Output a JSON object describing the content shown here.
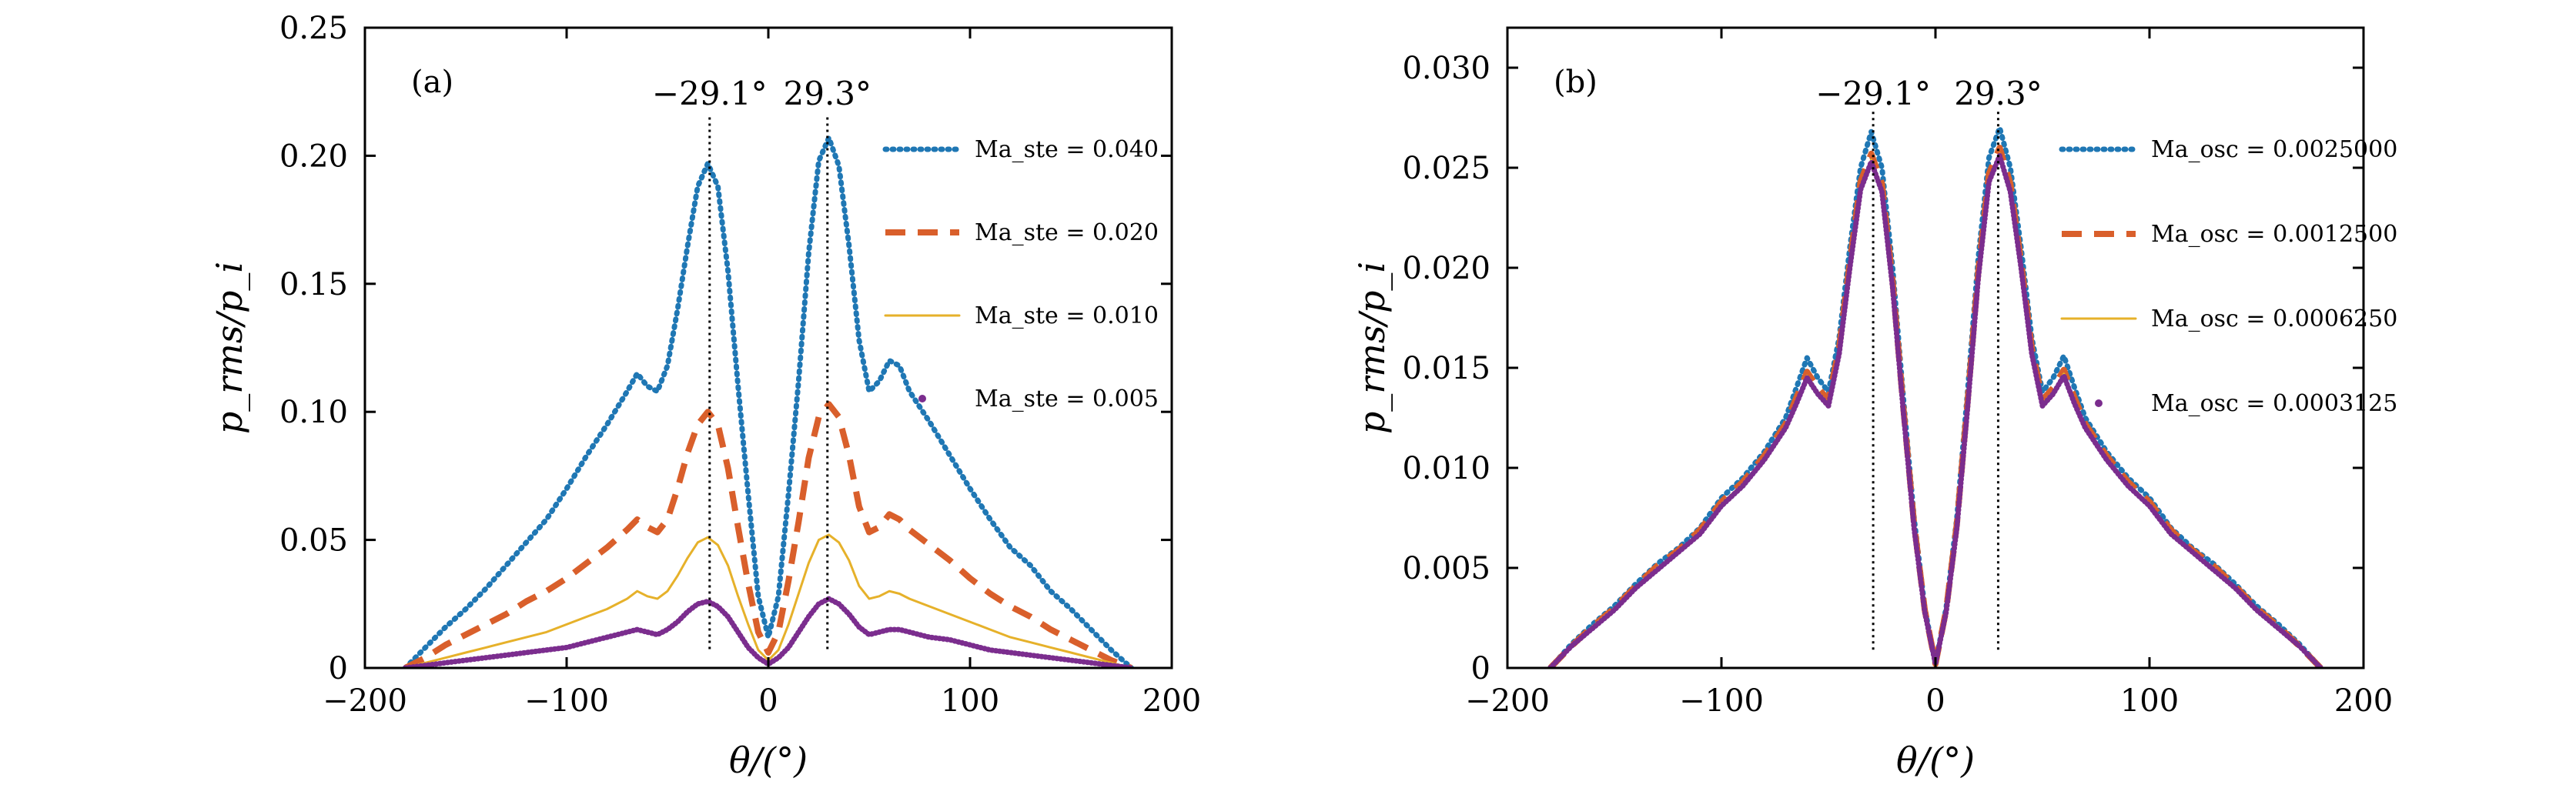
{
  "colors": {
    "series1": "#1f77b4",
    "series2": "#d95f2b",
    "series3": "#e6b12a",
    "series4": "#7b2d8e",
    "axis": "#000000"
  },
  "chart_data": [
    {
      "id": "a",
      "panel_label": "(a)",
      "type": "line",
      "xlabel": "θ/(°)",
      "ylabel": "p_rms/p_i",
      "xlim": [
        -200,
        200
      ],
      "ylim": [
        0,
        0.25
      ],
      "xticks": [
        -200,
        -100,
        0,
        100,
        200
      ],
      "xtick_labels": [
        "−200",
        "−100",
        "0",
        "100",
        "200"
      ],
      "yticks": [
        0,
        0.05,
        0.1,
        0.15,
        0.2,
        0.25
      ],
      "ytick_labels": [
        "0",
        "0.05",
        "0.10",
        "0.15",
        "0.20",
        "0.25"
      ],
      "vlines": [
        {
          "x": -29.1,
          "y_top": 0.215,
          "label": "−29.1°"
        },
        {
          "x": 29.3,
          "y_top": 0.215,
          "label": "29.3°"
        }
      ],
      "legend_position": "top-right",
      "series": [
        {
          "name": "Ma_ste = 0.040",
          "legend_label": {
            "var": "Ma",
            "sub": "ste",
            "rest": " = 0.040"
          },
          "style": "dotted",
          "color_key": "series1",
          "x": [
            -180,
            -170,
            -160,
            -150,
            -140,
            -130,
            -120,
            -110,
            -100,
            -90,
            -80,
            -70,
            -65,
            -60,
            -55,
            -50,
            -45,
            -40,
            -35,
            -30,
            -25,
            -20,
            -15,
            -10,
            -5,
            0,
            5,
            10,
            15,
            20,
            25,
            30,
            35,
            40,
            45,
            50,
            55,
            60,
            65,
            70,
            80,
            90,
            100,
            110,
            120,
            130,
            140,
            150,
            160,
            170,
            180
          ],
          "values": [
            0,
            0.008,
            0.016,
            0.023,
            0.031,
            0.04,
            0.049,
            0.058,
            0.07,
            0.083,
            0.095,
            0.108,
            0.115,
            0.11,
            0.108,
            0.118,
            0.14,
            0.165,
            0.188,
            0.197,
            0.188,
            0.155,
            0.11,
            0.068,
            0.028,
            0.012,
            0.028,
            0.068,
            0.112,
            0.162,
            0.198,
            0.207,
            0.196,
            0.165,
            0.128,
            0.108,
            0.112,
            0.12,
            0.118,
            0.108,
            0.096,
            0.083,
            0.07,
            0.058,
            0.047,
            0.04,
            0.03,
            0.023,
            0.015,
            0.007,
            0
          ]
        },
        {
          "name": "Ma_ste = 0.020",
          "legend_label": {
            "var": "Ma",
            "sub": "ste",
            "rest": " = 0.020"
          },
          "style": "dashed",
          "color_key": "series2",
          "x": [
            -180,
            -170,
            -160,
            -150,
            -140,
            -130,
            -120,
            -110,
            -100,
            -90,
            -80,
            -70,
            -65,
            -60,
            -55,
            -50,
            -45,
            -40,
            -35,
            -30,
            -25,
            -20,
            -15,
            -10,
            -5,
            0,
            5,
            10,
            15,
            20,
            25,
            30,
            35,
            40,
            45,
            50,
            55,
            60,
            65,
            70,
            80,
            90,
            100,
            110,
            120,
            130,
            140,
            150,
            160,
            170,
            180
          ],
          "values": [
            0,
            0.004,
            0.009,
            0.013,
            0.017,
            0.021,
            0.026,
            0.03,
            0.035,
            0.041,
            0.047,
            0.054,
            0.058,
            0.055,
            0.053,
            0.058,
            0.07,
            0.084,
            0.095,
            0.1,
            0.095,
            0.078,
            0.055,
            0.033,
            0.014,
            0.006,
            0.014,
            0.034,
            0.057,
            0.082,
            0.098,
            0.103,
            0.098,
            0.083,
            0.063,
            0.053,
            0.055,
            0.06,
            0.058,
            0.054,
            0.048,
            0.042,
            0.035,
            0.029,
            0.024,
            0.02,
            0.015,
            0.011,
            0.007,
            0.003,
            0
          ]
        },
        {
          "name": "Ma_ste = 0.010",
          "legend_label": {
            "var": "Ma",
            "sub": "ste",
            "rest": " = 0.010"
          },
          "style": "solid-thin",
          "color_key": "series3",
          "x": [
            -180,
            -170,
            -160,
            -150,
            -140,
            -130,
            -120,
            -110,
            -100,
            -90,
            -80,
            -70,
            -65,
            -60,
            -55,
            -50,
            -45,
            -40,
            -35,
            -30,
            -25,
            -20,
            -15,
            -10,
            -5,
            0,
            5,
            10,
            15,
            20,
            25,
            30,
            35,
            40,
            45,
            50,
            55,
            60,
            65,
            70,
            80,
            90,
            100,
            110,
            120,
            130,
            140,
            150,
            160,
            170,
            180
          ],
          "values": [
            0,
            0.002,
            0.004,
            0.006,
            0.008,
            0.01,
            0.012,
            0.014,
            0.017,
            0.02,
            0.023,
            0.027,
            0.03,
            0.028,
            0.027,
            0.03,
            0.036,
            0.043,
            0.049,
            0.051,
            0.048,
            0.04,
            0.028,
            0.017,
            0.007,
            0.003,
            0.007,
            0.017,
            0.029,
            0.041,
            0.05,
            0.052,
            0.049,
            0.042,
            0.032,
            0.027,
            0.028,
            0.03,
            0.029,
            0.027,
            0.024,
            0.021,
            0.018,
            0.015,
            0.012,
            0.01,
            0.008,
            0.006,
            0.004,
            0.002,
            0
          ]
        },
        {
          "name": "Ma_ste = 0.005",
          "legend_label": {
            "var": "Ma",
            "sub": "ste",
            "rest": " = 0.005"
          },
          "style": "dotted-dense",
          "color_key": "series4",
          "x": [
            -180,
            -170,
            -160,
            -150,
            -140,
            -130,
            -120,
            -110,
            -100,
            -90,
            -80,
            -70,
            -65,
            -60,
            -55,
            -50,
            -45,
            -40,
            -35,
            -30,
            -25,
            -20,
            -15,
            -10,
            -5,
            0,
            5,
            10,
            15,
            20,
            25,
            30,
            35,
            40,
            45,
            50,
            55,
            60,
            65,
            70,
            80,
            90,
            100,
            110,
            120,
            130,
            140,
            150,
            160,
            170,
            180
          ],
          "values": [
            0,
            0.001,
            0.002,
            0.003,
            0.004,
            0.005,
            0.006,
            0.007,
            0.008,
            0.01,
            0.012,
            0.014,
            0.015,
            0.014,
            0.013,
            0.015,
            0.018,
            0.022,
            0.025,
            0.026,
            0.024,
            0.02,
            0.014,
            0.008,
            0.004,
            0.0015,
            0.004,
            0.008,
            0.014,
            0.02,
            0.025,
            0.027,
            0.025,
            0.021,
            0.016,
            0.013,
            0.014,
            0.015,
            0.015,
            0.014,
            0.012,
            0.011,
            0.009,
            0.007,
            0.006,
            0.005,
            0.004,
            0.003,
            0.002,
            0.001,
            0
          ]
        }
      ]
    },
    {
      "id": "b",
      "panel_label": "(b)",
      "type": "line",
      "xlabel": "θ/(°)",
      "ylabel": "p_rms/p_i",
      "xlim": [
        -200,
        200
      ],
      "ylim": [
        0,
        0.032
      ],
      "xticks": [
        -200,
        -100,
        0,
        100,
        200
      ],
      "xtick_labels": [
        "−200",
        "−100",
        "0",
        "100",
        "200"
      ],
      "yticks": [
        0,
        0.005,
        0.01,
        0.015,
        0.02,
        0.025,
        0.03
      ],
      "ytick_labels": [
        "0",
        "0.005",
        "0.010",
        "0.015",
        "0.020",
        "0.025",
        "0.030"
      ],
      "vlines": [
        {
          "x": -29.1,
          "y_top": 0.0278,
          "label": "−29.1°"
        },
        {
          "x": 29.3,
          "y_top": 0.0278,
          "label": "29.3°"
        }
      ],
      "legend_position": "top-right",
      "series": [
        {
          "name": "Ma_osc = 0.0025000",
          "legend_label": {
            "var": "Ma",
            "sub": "osc",
            "rest": " = 0.0025000"
          },
          "style": "dotted",
          "color_key": "series1",
          "x": [
            -180,
            -170,
            -160,
            -150,
            -140,
            -130,
            -120,
            -110,
            -100,
            -90,
            -80,
            -70,
            -65,
            -60,
            -55,
            -50,
            -45,
            -40,
            -35,
            -30,
            -25,
            -20,
            -15,
            -10,
            -5,
            0,
            5,
            10,
            15,
            20,
            25,
            30,
            35,
            40,
            45,
            50,
            55,
            60,
            65,
            70,
            80,
            90,
            100,
            110,
            120,
            130,
            140,
            150,
            160,
            170,
            180
          ],
          "values": [
            0,
            0.0012,
            0.0022,
            0.0031,
            0.0042,
            0.0052,
            0.006,
            0.007,
            0.0085,
            0.0095,
            0.0108,
            0.0125,
            0.014,
            0.0155,
            0.0145,
            0.0138,
            0.0165,
            0.021,
            0.025,
            0.0268,
            0.025,
            0.02,
            0.0135,
            0.0075,
            0.003,
            0.0002,
            0.003,
            0.0075,
            0.0138,
            0.0205,
            0.0255,
            0.027,
            0.025,
            0.021,
            0.0165,
            0.0138,
            0.0145,
            0.0156,
            0.014,
            0.0125,
            0.0108,
            0.0095,
            0.0085,
            0.007,
            0.006,
            0.0052,
            0.0042,
            0.0031,
            0.0022,
            0.0012,
            0
          ]
        },
        {
          "name": "Ma_osc = 0.0012500",
          "legend_label": {
            "var": "Ma",
            "sub": "osc",
            "rest": " = 0.0012500"
          },
          "style": "dashed",
          "color_key": "series2",
          "x": [
            -180,
            -170,
            -160,
            -150,
            -140,
            -130,
            -120,
            -110,
            -100,
            -90,
            -80,
            -70,
            -65,
            -60,
            -55,
            -50,
            -45,
            -40,
            -35,
            -30,
            -25,
            -20,
            -15,
            -10,
            -5,
            0,
            5,
            10,
            15,
            20,
            25,
            30,
            35,
            40,
            45,
            50,
            55,
            60,
            65,
            70,
            80,
            90,
            100,
            110,
            120,
            130,
            140,
            150,
            160,
            170,
            180
          ],
          "values": [
            0,
            0.0011,
            0.0021,
            0.003,
            0.0041,
            0.0051,
            0.0059,
            0.0069,
            0.0083,
            0.0093,
            0.0106,
            0.0122,
            0.0135,
            0.0148,
            0.014,
            0.0134,
            0.016,
            0.0203,
            0.0243,
            0.0257,
            0.0242,
            0.0193,
            0.013,
            0.0072,
            0.0029,
            0.0002,
            0.0029,
            0.0072,
            0.0133,
            0.0198,
            0.0247,
            0.026,
            0.0242,
            0.0203,
            0.016,
            0.0134,
            0.014,
            0.0149,
            0.0135,
            0.0122,
            0.0106,
            0.0093,
            0.0083,
            0.0069,
            0.0059,
            0.0051,
            0.0041,
            0.003,
            0.0021,
            0.0011,
            0
          ]
        },
        {
          "name": "Ma_osc = 0.0006250",
          "legend_label": {
            "var": "Ma",
            "sub": "osc",
            "rest": " = 0.0006250"
          },
          "style": "solid-thin",
          "color_key": "series3",
          "x": [
            -180,
            -170,
            -160,
            -150,
            -140,
            -130,
            -120,
            -110,
            -100,
            -90,
            -80,
            -70,
            -65,
            -60,
            -55,
            -50,
            -45,
            -40,
            -35,
            -30,
            -25,
            -20,
            -15,
            -10,
            -5,
            0,
            5,
            10,
            15,
            20,
            25,
            30,
            35,
            40,
            45,
            50,
            55,
            60,
            65,
            70,
            80,
            90,
            100,
            110,
            120,
            130,
            140,
            150,
            160,
            170,
            180
          ],
          "values": [
            0,
            0.0011,
            0.0021,
            0.003,
            0.004,
            0.005,
            0.0058,
            0.0068,
            0.0082,
            0.0092,
            0.0105,
            0.0121,
            0.0133,
            0.0146,
            0.0138,
            0.0132,
            0.0158,
            0.0201,
            0.024,
            0.0254,
            0.0239,
            0.0191,
            0.0129,
            0.0071,
            0.0028,
            0.0002,
            0.0028,
            0.0071,
            0.0131,
            0.0196,
            0.0244,
            0.0257,
            0.0239,
            0.0201,
            0.0158,
            0.0132,
            0.0138,
            0.0147,
            0.0133,
            0.0121,
            0.0105,
            0.0092,
            0.0082,
            0.0068,
            0.0058,
            0.005,
            0.004,
            0.003,
            0.0021,
            0.0011,
            0
          ]
        },
        {
          "name": "Ma_osc = 0.0003125",
          "legend_label": {
            "var": "Ma",
            "sub": "osc",
            "rest": " = 0.0003125"
          },
          "style": "dotted-dense",
          "color_key": "series4",
          "x": [
            -180,
            -170,
            -160,
            -150,
            -140,
            -130,
            -120,
            -110,
            -100,
            -90,
            -80,
            -70,
            -65,
            -60,
            -55,
            -50,
            -45,
            -40,
            -35,
            -30,
            -25,
            -20,
            -15,
            -10,
            -5,
            0,
            5,
            10,
            15,
            20,
            25,
            30,
            35,
            40,
            45,
            50,
            55,
            60,
            65,
            70,
            80,
            90,
            100,
            110,
            120,
            130,
            140,
            150,
            160,
            170,
            180
          ],
          "values": [
            0,
            0.0011,
            0.002,
            0.0029,
            0.004,
            0.0049,
            0.0058,
            0.0067,
            0.0081,
            0.0091,
            0.0104,
            0.012,
            0.0132,
            0.0145,
            0.0137,
            0.0131,
            0.0157,
            0.02,
            0.0239,
            0.0253,
            0.0238,
            0.019,
            0.0128,
            0.007,
            0.0028,
            0.0002,
            0.0028,
            0.007,
            0.013,
            0.0195,
            0.0243,
            0.0256,
            0.0238,
            0.02,
            0.0157,
            0.0131,
            0.0137,
            0.0146,
            0.0132,
            0.012,
            0.0104,
            0.0091,
            0.0081,
            0.0067,
            0.0058,
            0.0049,
            0.004,
            0.0029,
            0.002,
            0.0011,
            0
          ]
        }
      ]
    }
  ]
}
